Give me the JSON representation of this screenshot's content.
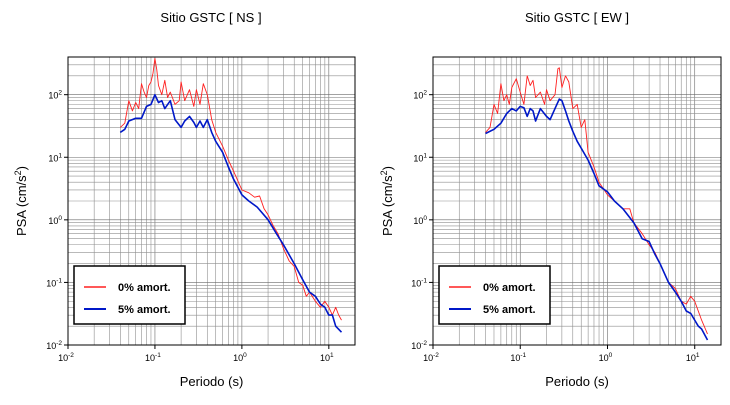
{
  "figure": {
    "panels": [
      {
        "title": "Sitio GSTC [ NS ]",
        "xlabel": "Periodo (s)",
        "ylabel_main": "PSA (cm/s",
        "ylabel_sup": "2",
        "ylabel_end": ")",
        "legend_labels": [
          "0% amort.",
          "5% amort."
        ]
      },
      {
        "title": "Sitio GSTC [ EW ]",
        "xlabel": "Periodo (s)",
        "ylabel_main": "PSA (cm/s",
        "ylabel_sup": "2",
        "ylabel_end": ")",
        "legend_labels": [
          "0% amort.",
          "5% amort."
        ]
      }
    ]
  },
  "chart_data": [
    {
      "type": "line",
      "title": "Sitio GSTC [ NS ]",
      "xlabel": "Periodo (s)",
      "ylabel": "PSA (cm/s2)",
      "xscale": "log",
      "yscale": "log",
      "xlim": [
        0.01,
        20
      ],
      "ylim": [
        0.01,
        400
      ],
      "xticks": [
        {
          "base": "10",
          "exp": "-2",
          "value": 0.01
        },
        {
          "base": "10",
          "exp": "-1",
          "value": 0.1
        },
        {
          "base": "10",
          "exp": "0",
          "value": 1
        },
        {
          "base": "10",
          "exp": "1",
          "value": 10
        }
      ],
      "yticks": [
        {
          "base": "10",
          "exp": "-2",
          "value": 0.01
        },
        {
          "base": "10",
          "exp": "-1",
          "value": 0.1
        },
        {
          "base": "10",
          "exp": "0",
          "value": 1
        },
        {
          "base": "10",
          "exp": "1",
          "value": 10
        },
        {
          "base": "10",
          "exp": "2",
          "value": 100
        }
      ],
      "grid": true,
      "legend": "bottom-left",
      "series": [
        {
          "name": "0% amort.",
          "color": "#ff2020",
          "x": [
            0.04,
            0.045,
            0.05,
            0.055,
            0.06,
            0.065,
            0.07,
            0.075,
            0.08,
            0.085,
            0.09,
            0.095,
            0.1,
            0.105,
            0.11,
            0.12,
            0.13,
            0.14,
            0.15,
            0.17,
            0.19,
            0.2,
            0.22,
            0.25,
            0.28,
            0.3,
            0.33,
            0.36,
            0.4,
            0.45,
            0.5,
            0.6,
            0.7,
            0.8,
            1.0,
            1.2,
            1.4,
            1.6,
            1.8,
            2.0,
            2.3,
            2.6,
            3.0,
            3.5,
            4.0,
            4.5,
            5.0,
            5.5,
            6.0,
            7.0,
            8.0,
            9.0,
            10.0,
            11.0,
            12.0,
            13.0,
            14.0
          ],
          "y": [
            30,
            35,
            80,
            55,
            75,
            60,
            150,
            110,
            90,
            140,
            160,
            220,
            380,
            250,
            140,
            100,
            170,
            90,
            110,
            70,
            80,
            160,
            80,
            120,
            65,
            120,
            70,
            150,
            100,
            40,
            25,
            15,
            9,
            6,
            3.0,
            2.7,
            2.3,
            2.4,
            1.5,
            1.2,
            0.8,
            0.6,
            0.35,
            0.22,
            0.18,
            0.1,
            0.09,
            0.06,
            0.07,
            0.05,
            0.04,
            0.05,
            0.04,
            0.03,
            0.04,
            0.03,
            0.025
          ]
        },
        {
          "name": "5% amort.",
          "color": "#0018c8",
          "x": [
            0.04,
            0.045,
            0.05,
            0.06,
            0.07,
            0.08,
            0.09,
            0.1,
            0.11,
            0.12,
            0.13,
            0.15,
            0.17,
            0.2,
            0.22,
            0.25,
            0.28,
            0.3,
            0.33,
            0.36,
            0.4,
            0.45,
            0.5,
            0.6,
            0.7,
            0.8,
            1.0,
            1.2,
            1.5,
            2.0,
            2.5,
            3.0,
            4.0,
            5.0,
            6.0,
            7.0,
            8.0,
            9.0,
            10.0,
            11.0,
            12.0,
            14.0
          ],
          "y": [
            25,
            28,
            38,
            42,
            42,
            65,
            70,
            100,
            75,
            80,
            60,
            80,
            40,
            30,
            38,
            45,
            36,
            30,
            38,
            30,
            40,
            25,
            18,
            12,
            7,
            4.5,
            2.5,
            2.0,
            1.6,
            1.0,
            0.6,
            0.4,
            0.2,
            0.11,
            0.07,
            0.06,
            0.045,
            0.04,
            0.03,
            0.03,
            0.02,
            0.016
          ]
        }
      ]
    },
    {
      "type": "line",
      "title": "Sitio GSTC [ EW ]",
      "xlabel": "Periodo (s)",
      "ylabel": "PSA (cm/s2)",
      "xscale": "log",
      "yscale": "log",
      "xlim": [
        0.01,
        20
      ],
      "ylim": [
        0.01,
        400
      ],
      "xticks": [
        {
          "base": "10",
          "exp": "-2",
          "value": 0.01
        },
        {
          "base": "10",
          "exp": "-1",
          "value": 0.1
        },
        {
          "base": "10",
          "exp": "0",
          "value": 1
        },
        {
          "base": "10",
          "exp": "1",
          "value": 10
        }
      ],
      "yticks": [
        {
          "base": "10",
          "exp": "-2",
          "value": 0.01
        },
        {
          "base": "10",
          "exp": "-1",
          "value": 0.1
        },
        {
          "base": "10",
          "exp": "0",
          "value": 1
        },
        {
          "base": "10",
          "exp": "1",
          "value": 10
        },
        {
          "base": "10",
          "exp": "2",
          "value": 100
        }
      ],
      "grid": true,
      "legend": "bottom-left",
      "series": [
        {
          "name": "0% amort.",
          "color": "#ff2020",
          "x": [
            0.04,
            0.045,
            0.05,
            0.055,
            0.06,
            0.065,
            0.07,
            0.075,
            0.08,
            0.09,
            0.1,
            0.11,
            0.12,
            0.13,
            0.14,
            0.15,
            0.17,
            0.19,
            0.2,
            0.22,
            0.25,
            0.27,
            0.28,
            0.3,
            0.33,
            0.36,
            0.4,
            0.45,
            0.5,
            0.55,
            0.6,
            0.7,
            0.8,
            1.0,
            1.2,
            1.5,
            1.8,
            2.0,
            2.5,
            3.0,
            3.5,
            4.0,
            5.0,
            6.0,
            7.0,
            8.0,
            9.0,
            10.0,
            12.0,
            14.0
          ],
          "y": [
            25,
            30,
            70,
            50,
            150,
            80,
            100,
            70,
            130,
            180,
            110,
            70,
            200,
            140,
            170,
            90,
            110,
            70,
            120,
            80,
            100,
            260,
            270,
            130,
            200,
            160,
            60,
            70,
            30,
            40,
            12,
            7,
            4,
            2.5,
            2.0,
            1.5,
            1.5,
            0.9,
            0.6,
            0.4,
            0.3,
            0.2,
            0.1,
            0.08,
            0.05,
            0.045,
            0.06,
            0.05,
            0.025,
            0.015
          ]
        },
        {
          "name": "5% amort.",
          "color": "#0018c8",
          "x": [
            0.04,
            0.05,
            0.06,
            0.07,
            0.08,
            0.09,
            0.1,
            0.11,
            0.12,
            0.13,
            0.14,
            0.15,
            0.17,
            0.2,
            0.22,
            0.25,
            0.28,
            0.3,
            0.33,
            0.36,
            0.4,
            0.45,
            0.5,
            0.6,
            0.7,
            0.8,
            1.0,
            1.2,
            1.5,
            2.0,
            2.5,
            3.0,
            3.5,
            4.0,
            5.0,
            6.0,
            7.0,
            8.0,
            9.0,
            10.0,
            11.0,
            12.0,
            14.0
          ],
          "y": [
            24,
            28,
            35,
            50,
            60,
            55,
            65,
            62,
            45,
            60,
            55,
            38,
            60,
            45,
            40,
            60,
            85,
            80,
            55,
            38,
            26,
            18,
            14,
            9,
            5.5,
            3.5,
            2.8,
            2.0,
            1.5,
            0.9,
            0.5,
            0.45,
            0.28,
            0.2,
            0.1,
            0.07,
            0.05,
            0.035,
            0.032,
            0.025,
            0.02,
            0.018,
            0.012
          ]
        }
      ]
    }
  ]
}
